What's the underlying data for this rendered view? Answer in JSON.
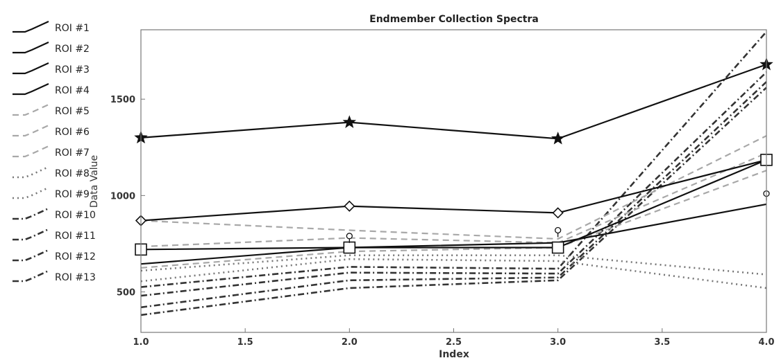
{
  "chart_data": {
    "type": "line",
    "title": "Endmember Collection Spectra",
    "xlabel": "Index",
    "ylabel": "Data Value",
    "xlim": [
      1.0,
      4.0
    ],
    "ylim": [
      290,
      1860
    ],
    "x_ticks": [
      "1.0",
      "1.5",
      "2.0",
      "2.5",
      "3.0",
      "3.5",
      "4.0"
    ],
    "y_ticks": [
      "500",
      "1000",
      "1500"
    ],
    "grid": false,
    "legend_position": "left",
    "x": [
      1,
      2,
      3,
      4
    ],
    "series": [
      {
        "name": "ROI #1",
        "style": "solid",
        "marker": "star",
        "values": [
          1300,
          1380,
          1295,
          1680
        ]
      },
      {
        "name": "ROI #2",
        "style": "solid",
        "marker": "diamond",
        "values": [
          870,
          945,
          910,
          1185
        ]
      },
      {
        "name": "ROI #3",
        "style": "solid",
        "marker": "square",
        "values": [
          720,
          730,
          730,
          1185
        ]
      },
      {
        "name": "ROI #4",
        "style": "solid",
        "marker": "circle",
        "values": [
          645,
          730,
          755,
          955
        ]
      },
      {
        "name": "ROI #5",
        "style": "dashed",
        "values": [
          870,
          820,
          775,
          1310
        ]
      },
      {
        "name": "ROI #6",
        "style": "dashed",
        "values": [
          735,
          780,
          755,
          1220
        ]
      },
      {
        "name": "ROI #7",
        "style": "dashed",
        "values": [
          625,
          710,
          730,
          1130
        ]
      },
      {
        "name": "ROI #8",
        "style": "dotted",
        "values": [
          610,
          690,
          690,
          590
        ]
      },
      {
        "name": "ROI #9",
        "style": "dotted",
        "values": [
          555,
          670,
          660,
          520
        ]
      },
      {
        "name": "ROI #10",
        "style": "dashdot",
        "values": [
          525,
          630,
          620,
          1850
        ]
      },
      {
        "name": "ROI #11",
        "style": "dashdot",
        "values": [
          480,
          600,
          595,
          1640
        ]
      },
      {
        "name": "ROI #12",
        "style": "dashdot",
        "values": [
          420,
          560,
          575,
          1590
        ]
      },
      {
        "name": "ROI #13",
        "style": "dashdot",
        "values": [
          380,
          520,
          560,
          1560
        ]
      }
    ],
    "point_markers": [
      {
        "x": 2,
        "y": 790,
        "marker": "circle"
      },
      {
        "x": 3,
        "y": 820,
        "marker": "circle"
      },
      {
        "x": 4,
        "y": 1010,
        "marker": "circle"
      }
    ]
  }
}
